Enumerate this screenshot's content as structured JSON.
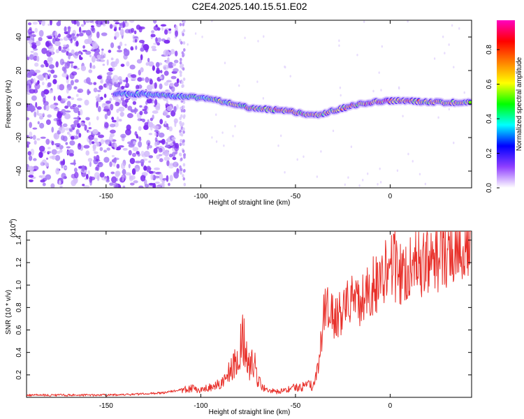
{
  "title": "C2E4.2025.140.15.51.E02",
  "chart_data": [
    {
      "type": "heatmap",
      "name": "spectrogram",
      "xlabel": "Height of straight line (km)",
      "ylabel": "Frequency (Hz)",
      "xlim": [
        -192,
        43
      ],
      "ylim": [
        -50,
        50
      ],
      "x_ticks": [
        -150,
        -100,
        -50,
        0
      ],
      "y_ticks": [
        -40,
        -20,
        0,
        20,
        40
      ],
      "colorbar": {
        "label": "Normalized spectral amplitude",
        "range": [
          0,
          0.97
        ],
        "ticks": [
          0,
          0.2,
          0.4,
          0.6,
          0.8
        ],
        "tick_labels": [
          "0.0",
          "0.2",
          "0.4",
          "0.6",
          "0.8"
        ],
        "colormap": [
          "#ffffff",
          "#9040ff",
          "#0000ff",
          "#00ffff",
          "#00ff00",
          "#ffff00",
          "#ff8000",
          "#ff0000",
          "#ff00c0"
        ]
      },
      "ridge": {
        "x": [
          -145,
          -130,
          -115,
          -105,
          -95,
          -85,
          -75,
          -65,
          -55,
          -45,
          -40,
          -35,
          -30,
          -20,
          -10,
          0,
          10,
          20,
          30,
          43
        ],
        "y": [
          6,
          6,
          5,
          4,
          3,
          1,
          -2,
          -3,
          -4,
          -6,
          -7,
          -6,
          -4,
          -1,
          1,
          2,
          2,
          1,
          1,
          1
        ],
        "amplitude": [
          0.45,
          0.5,
          0.5,
          0.55,
          0.6,
          0.7,
          0.8,
          0.85,
          0.85,
          0.9,
          0.85,
          0.8,
          0.85,
          0.9,
          0.95,
          0.95,
          0.9,
          0.85,
          0.8,
          0.75
        ]
      }
    },
    {
      "type": "line",
      "name": "snr",
      "xlabel": "Height of straight line (km)",
      "ylabel": "SNR (10 * v/v)",
      "scale_label": "(x10",
      "scale_exponent": "4",
      "color": "#e8302a",
      "xlim": [
        -192,
        43
      ],
      "ylim": [
        0,
        1.48
      ],
      "x_ticks": [
        -150,
        -100,
        -50,
        0
      ],
      "y_ticks": [
        0.2,
        0.4,
        0.6,
        0.8,
        1.0,
        1.2,
        1.4
      ],
      "y_tick_labels": [
        "0.2",
        "0.4",
        "0.6",
        "0.8",
        "1.0",
        "1.2",
        "1.4"
      ],
      "x": [
        -192,
        -170,
        -150,
        -130,
        -120,
        -110,
        -105,
        -100,
        -95,
        -90,
        -85,
        -80,
        -78,
        -76,
        -74,
        -72,
        -70,
        -65,
        -60,
        -55,
        -50,
        -45,
        -40,
        -37,
        -35,
        -33,
        -30,
        -25,
        -20,
        -16,
        -12,
        -8,
        -4,
        0,
        4,
        8,
        12,
        16,
        20,
        25,
        30,
        35,
        40,
        43
      ],
      "y": [
        0.02,
        0.02,
        0.02,
        0.03,
        0.04,
        0.07,
        0.08,
        0.07,
        0.09,
        0.12,
        0.22,
        0.35,
        0.55,
        0.42,
        0.25,
        0.33,
        0.15,
        0.06,
        0.05,
        0.06,
        0.09,
        0.1,
        0.11,
        0.35,
        0.75,
        0.85,
        0.7,
        0.78,
        0.9,
        0.8,
        0.95,
        1.0,
        1.05,
        1.3,
        1.1,
        1.12,
        1.18,
        1.15,
        1.2,
        1.28,
        1.32,
        1.35,
        1.38,
        1.35
      ]
    }
  ]
}
